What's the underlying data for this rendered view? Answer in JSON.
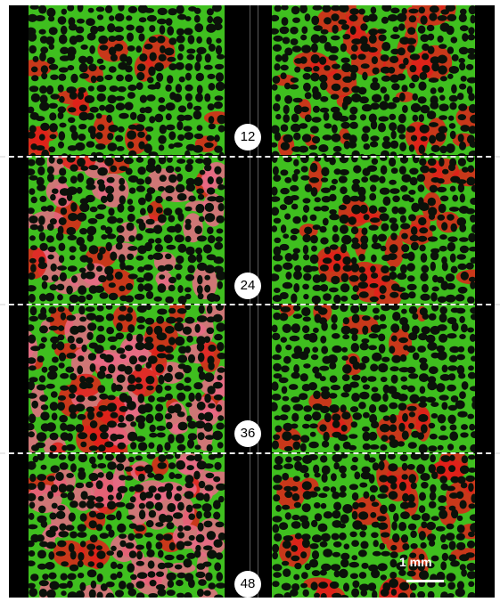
{
  "image": {
    "colors": {
      "background_frame": "#000000",
      "divider_dash": "#e8e8e8",
      "badge_fill": "#ffffff",
      "green_phase": "#3fbf1f",
      "red_phase": "#e0201a",
      "pink_phase": "#e86a86",
      "grain": "#0b110a"
    },
    "time_markers": [
      "12",
      "24",
      "36",
      "48"
    ],
    "scale_bar": {
      "label": "1 mm"
    }
  }
}
